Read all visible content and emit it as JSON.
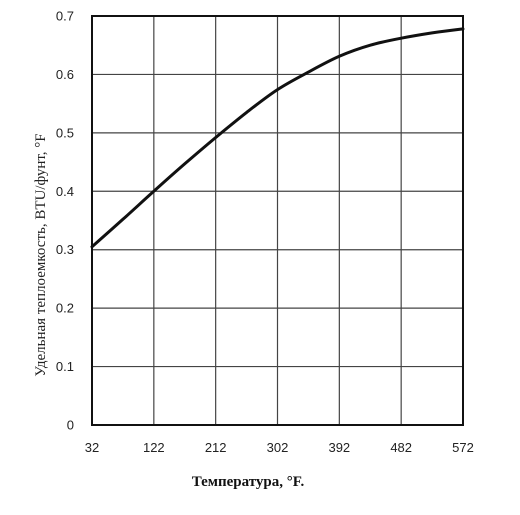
{
  "chart_data": {
    "type": "line",
    "xlabel": "Температура, °F.",
    "ylabel": "Удельная теплоемкость, BTU/фунт, °F",
    "x_ticks": [
      32,
      122,
      212,
      302,
      392,
      482,
      572
    ],
    "y_ticks": [
      "0",
      "0.1",
      "0.2",
      "0.3",
      "0.4",
      "0.5",
      "0.6",
      "0.7"
    ],
    "xlim": [
      32,
      572
    ],
    "ylim": [
      0,
      0.7
    ],
    "grid": true,
    "series": [
      {
        "x": [
          32,
          77,
          122,
          167,
          212,
          257,
          302,
          347,
          392,
          437,
          482,
          527,
          572
        ],
        "y": [
          0.305,
          0.352,
          0.4,
          0.447,
          0.492,
          0.535,
          0.574,
          0.604,
          0.631,
          0.65,
          0.662,
          0.671,
          0.678
        ]
      }
    ]
  }
}
